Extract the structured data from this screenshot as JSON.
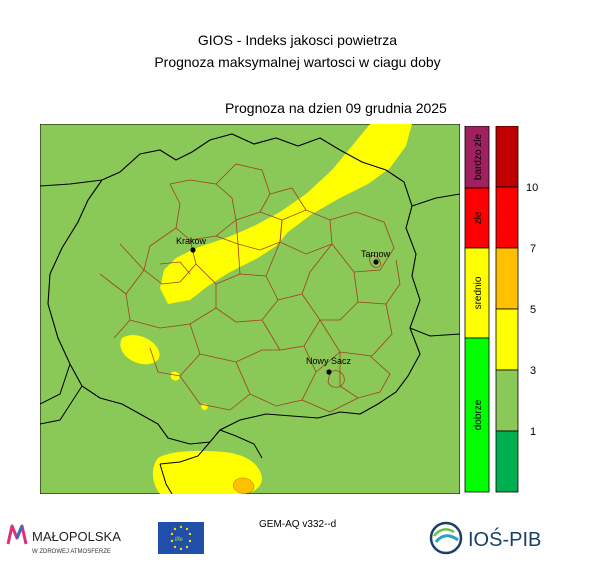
{
  "title_line1": "GIOS - Indeks jakosci powietrza",
  "title_line2": "Prognoza maksymalnej wartosci w ciagu doby",
  "forecast_date": "Prognoza na dzien  09 grudnia 2025",
  "cities": [
    {
      "name": "Krakow"
    },
    {
      "name": "Tarnow"
    },
    {
      "name": "Nowy Sacz"
    }
  ],
  "categories": [
    {
      "label": "bardzo zle",
      "color": "#a02060"
    },
    {
      "label": "zle",
      "color": "#ff0000"
    },
    {
      "label": "srednio",
      "color": "#ffff00"
    },
    {
      "label": "dobrze",
      "color": "#00ff00"
    }
  ],
  "scale": {
    "colors": [
      "#c00000",
      "#ff0000",
      "#ffc000",
      "#ffff00",
      "#8ac858",
      "#00b050"
    ],
    "tick_labels": [
      "10",
      "7",
      "5",
      "3",
      "1"
    ]
  },
  "colors": {
    "background_green": "#8ac858",
    "yellow": "#ffff00",
    "orange": "#ffc000",
    "region_border": "#000000",
    "county_border": "#a04020"
  },
  "model_label": "GEM-AQ v332--d",
  "logos": {
    "malopolska_name": "MAŁOPOLSKA",
    "malopolska_tagline": "W ZDROWEJ ATMOSFERZE",
    "eu_life": "LIFE",
    "ios_pib": "IOŚ-PIB"
  }
}
